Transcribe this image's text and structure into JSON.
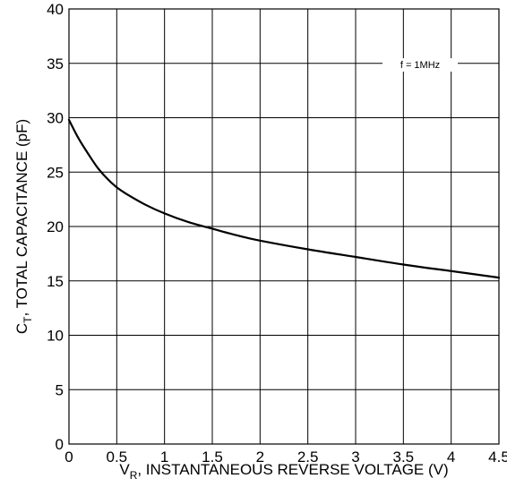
{
  "chart_data": {
    "type": "line",
    "xlabel": {
      "main": "V",
      "subscript": "R",
      "rest": ", INSTANTANEOUS REVERSE VOLTAGE (V)"
    },
    "ylabel": {
      "main": "C",
      "subscript": "T",
      "rest": ", TOTAL CAPACITANCE (pF)"
    },
    "xlim": [
      0,
      4.5
    ],
    "ylim": [
      0,
      40
    ],
    "x_ticks": [
      0,
      0.5,
      1,
      1.5,
      2,
      2.5,
      3,
      3.5,
      4,
      4.5
    ],
    "x_tick_labels": [
      "0",
      "0.5",
      "1",
      "1.5",
      "2",
      "2.5",
      "3",
      "3.5",
      "4",
      "4.5"
    ],
    "y_ticks": [
      0,
      5,
      10,
      15,
      20,
      25,
      30,
      35,
      40
    ],
    "y_tick_labels": [
      "0",
      "5",
      "10",
      "15",
      "20",
      "25",
      "30",
      "35",
      "40"
    ],
    "grid": true,
    "annotation": "f = 1MHz",
    "series": [
      {
        "x": [
          0,
          0.1,
          0.2,
          0.3,
          0.4,
          0.5,
          0.6,
          0.8,
          1.0,
          1.25,
          1.5,
          1.75,
          2.0,
          2.5,
          3.0,
          3.5,
          4.0,
          4.5
        ],
        "y": [
          29.8,
          28.1,
          26.7,
          25.4,
          24.4,
          23.6,
          23.0,
          22.0,
          21.2,
          20.4,
          19.8,
          19.2,
          18.7,
          17.9,
          17.2,
          16.5,
          15.9,
          15.3
        ]
      }
    ]
  }
}
